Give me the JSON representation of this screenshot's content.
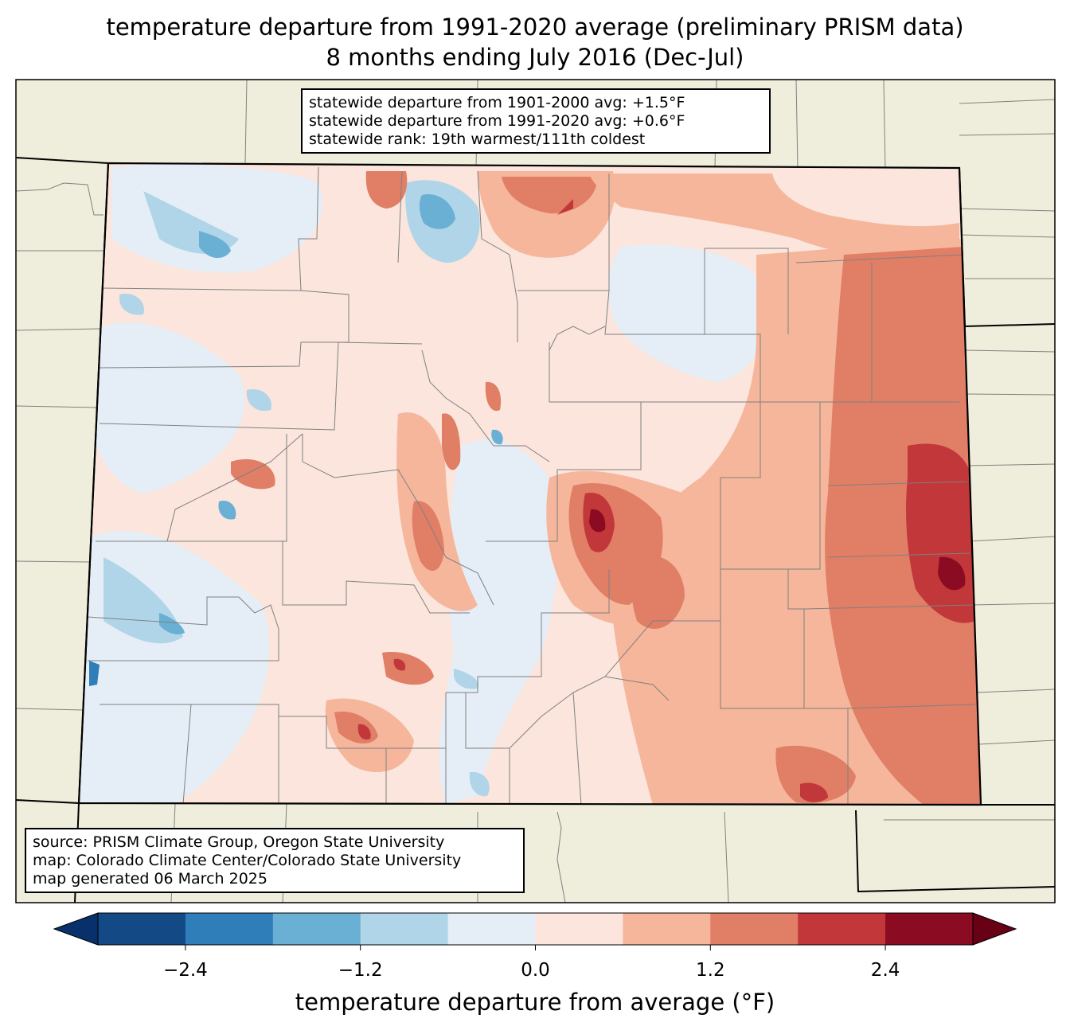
{
  "title": {
    "line1": "temperature departure from 1991-2020 average (preliminary PRISM data)",
    "line2": "8 months ending July 2016 (Dec-Jul)"
  },
  "stats": {
    "line1": "statewide departure from 1901-2000 avg: +1.5°F",
    "line2": "statewide departure from 1991-2020 avg: +0.6°F",
    "line3": "statewide rank: 19th warmest/111th coldest"
  },
  "source": {
    "line1": "source: PRISM Climate Group, Oregon State University",
    "line2": "map: Colorado Climate Center/Colorado State University",
    "line3": "map generated 06 March 2025"
  },
  "colorbar": {
    "label": "temperature departure from average (°F)",
    "ticks": [
      "−2.4",
      "−1.2",
      "0.0",
      "1.2",
      "2.4"
    ],
    "tick_values": [
      -2.4,
      -1.2,
      0.0,
      1.2,
      2.4
    ],
    "bounds": [
      -3.0,
      3.0
    ],
    "step": 0.6,
    "extend": "both",
    "colors": [
      "#08306b",
      "#134a85",
      "#2f7db9",
      "#6aafd4",
      "#b0d5e8",
      "#e5eef6",
      "#fbe5dc",
      "#f5b69b",
      "#e07e66",
      "#c1373a",
      "#8a0b22",
      "#680016"
    ]
  },
  "map_colors": {
    "land": "#efeedc",
    "county_lines": "#808080",
    "state_lines": "#000000"
  }
}
